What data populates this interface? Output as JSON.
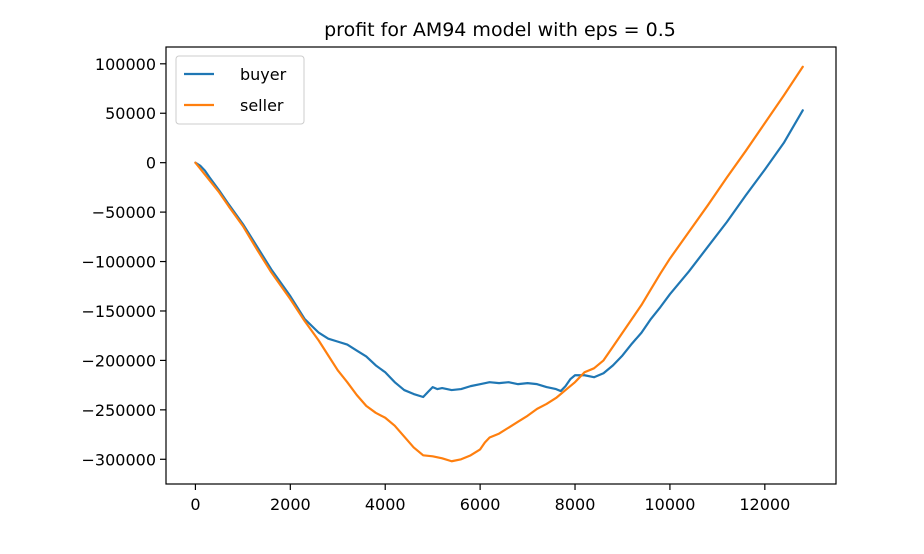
{
  "chart_data": {
    "type": "line",
    "title": "profit for AM94 model with eps = 0.5",
    "xlabel": "",
    "ylabel": "",
    "xlim": [
      -620,
      13500
    ],
    "ylim": [
      -325000,
      117000
    ],
    "xticks": [
      0,
      2000,
      4000,
      6000,
      8000,
      10000,
      12000
    ],
    "xtick_labels": [
      "0",
      "2000",
      "4000",
      "6000",
      "8000",
      "10000",
      "12000"
    ],
    "yticks": [
      100000,
      50000,
      0,
      -50000,
      -100000,
      -150000,
      -200000,
      -250000,
      -300000
    ],
    "ytick_labels": [
      "100000",
      "50000",
      "0",
      "−50000",
      "−100000",
      "−150000",
      "−200000",
      "−250000",
      "−300000"
    ],
    "grid": false,
    "legend_position": "top-left",
    "series": [
      {
        "name": "buyer",
        "color": "#1f77b4",
        "x": [
          0,
          100,
          200,
          300,
          500,
          700,
          1000,
          1300,
          1600,
          2000,
          2300,
          2600,
          2800,
          3000,
          3200,
          3400,
          3600,
          3800,
          4000,
          4200,
          4400,
          4600,
          4800,
          4900,
          5000,
          5100,
          5200,
          5400,
          5600,
          5800,
          6000,
          6200,
          6400,
          6600,
          6800,
          7000,
          7200,
          7400,
          7600,
          7700,
          7800,
          7900,
          8000,
          8200,
          8400,
          8600,
          8800,
          9000,
          9200,
          9400,
          9600,
          9800,
          10000,
          10400,
          10800,
          11200,
          11600,
          12000,
          12400,
          12800
        ],
        "y": [
          0,
          -3000,
          -8000,
          -15000,
          -28000,
          -42000,
          -62000,
          -85000,
          -108000,
          -135000,
          -158000,
          -172000,
          -178000,
          -181000,
          -184000,
          -190000,
          -196000,
          -205000,
          -212000,
          -222000,
          -230000,
          -234000,
          -237000,
          -232000,
          -227000,
          -229000,
          -228000,
          -230000,
          -229000,
          -226000,
          -224000,
          -222000,
          -223000,
          -222000,
          -224000,
          -223000,
          -224000,
          -227000,
          -229000,
          -231000,
          -226000,
          -219000,
          -215000,
          -215000,
          -217000,
          -213000,
          -205000,
          -195000,
          -183000,
          -172000,
          -158000,
          -146000,
          -133000,
          -110000,
          -85000,
          -60000,
          -33000,
          -7000,
          20000,
          53000
        ]
      },
      {
        "name": "seller",
        "color": "#ff7f0e",
        "x": [
          0,
          100,
          200,
          300,
          500,
          700,
          1000,
          1300,
          1600,
          2000,
          2300,
          2600,
          2800,
          3000,
          3200,
          3400,
          3600,
          3800,
          4000,
          4200,
          4400,
          4600,
          4800,
          5000,
          5200,
          5400,
          5600,
          5800,
          6000,
          6100,
          6200,
          6400,
          6600,
          6800,
          7000,
          7200,
          7400,
          7600,
          7800,
          8000,
          8200,
          8400,
          8600,
          8800,
          9000,
          9200,
          9400,
          9600,
          9800,
          10000,
          10400,
          10800,
          11200,
          11600,
          12000,
          12400,
          12800
        ],
        "y": [
          0,
          -6000,
          -12000,
          -18000,
          -30000,
          -44000,
          -64000,
          -88000,
          -111000,
          -138000,
          -160000,
          -180000,
          -195000,
          -210000,
          -222000,
          -235000,
          -246000,
          -253000,
          -258000,
          -266000,
          -277000,
          -288000,
          -296000,
          -297000,
          -299000,
          -302000,
          -300000,
          -296000,
          -290000,
          -283000,
          -278000,
          -274000,
          -268000,
          -262000,
          -256000,
          -249000,
          -244000,
          -238000,
          -230000,
          -222000,
          -212000,
          -208000,
          -200000,
          -186000,
          -172000,
          -158000,
          -144000,
          -128000,
          -112000,
          -97000,
          -70000,
          -43000,
          -15000,
          12000,
          40000,
          68000,
          97000
        ]
      }
    ]
  }
}
